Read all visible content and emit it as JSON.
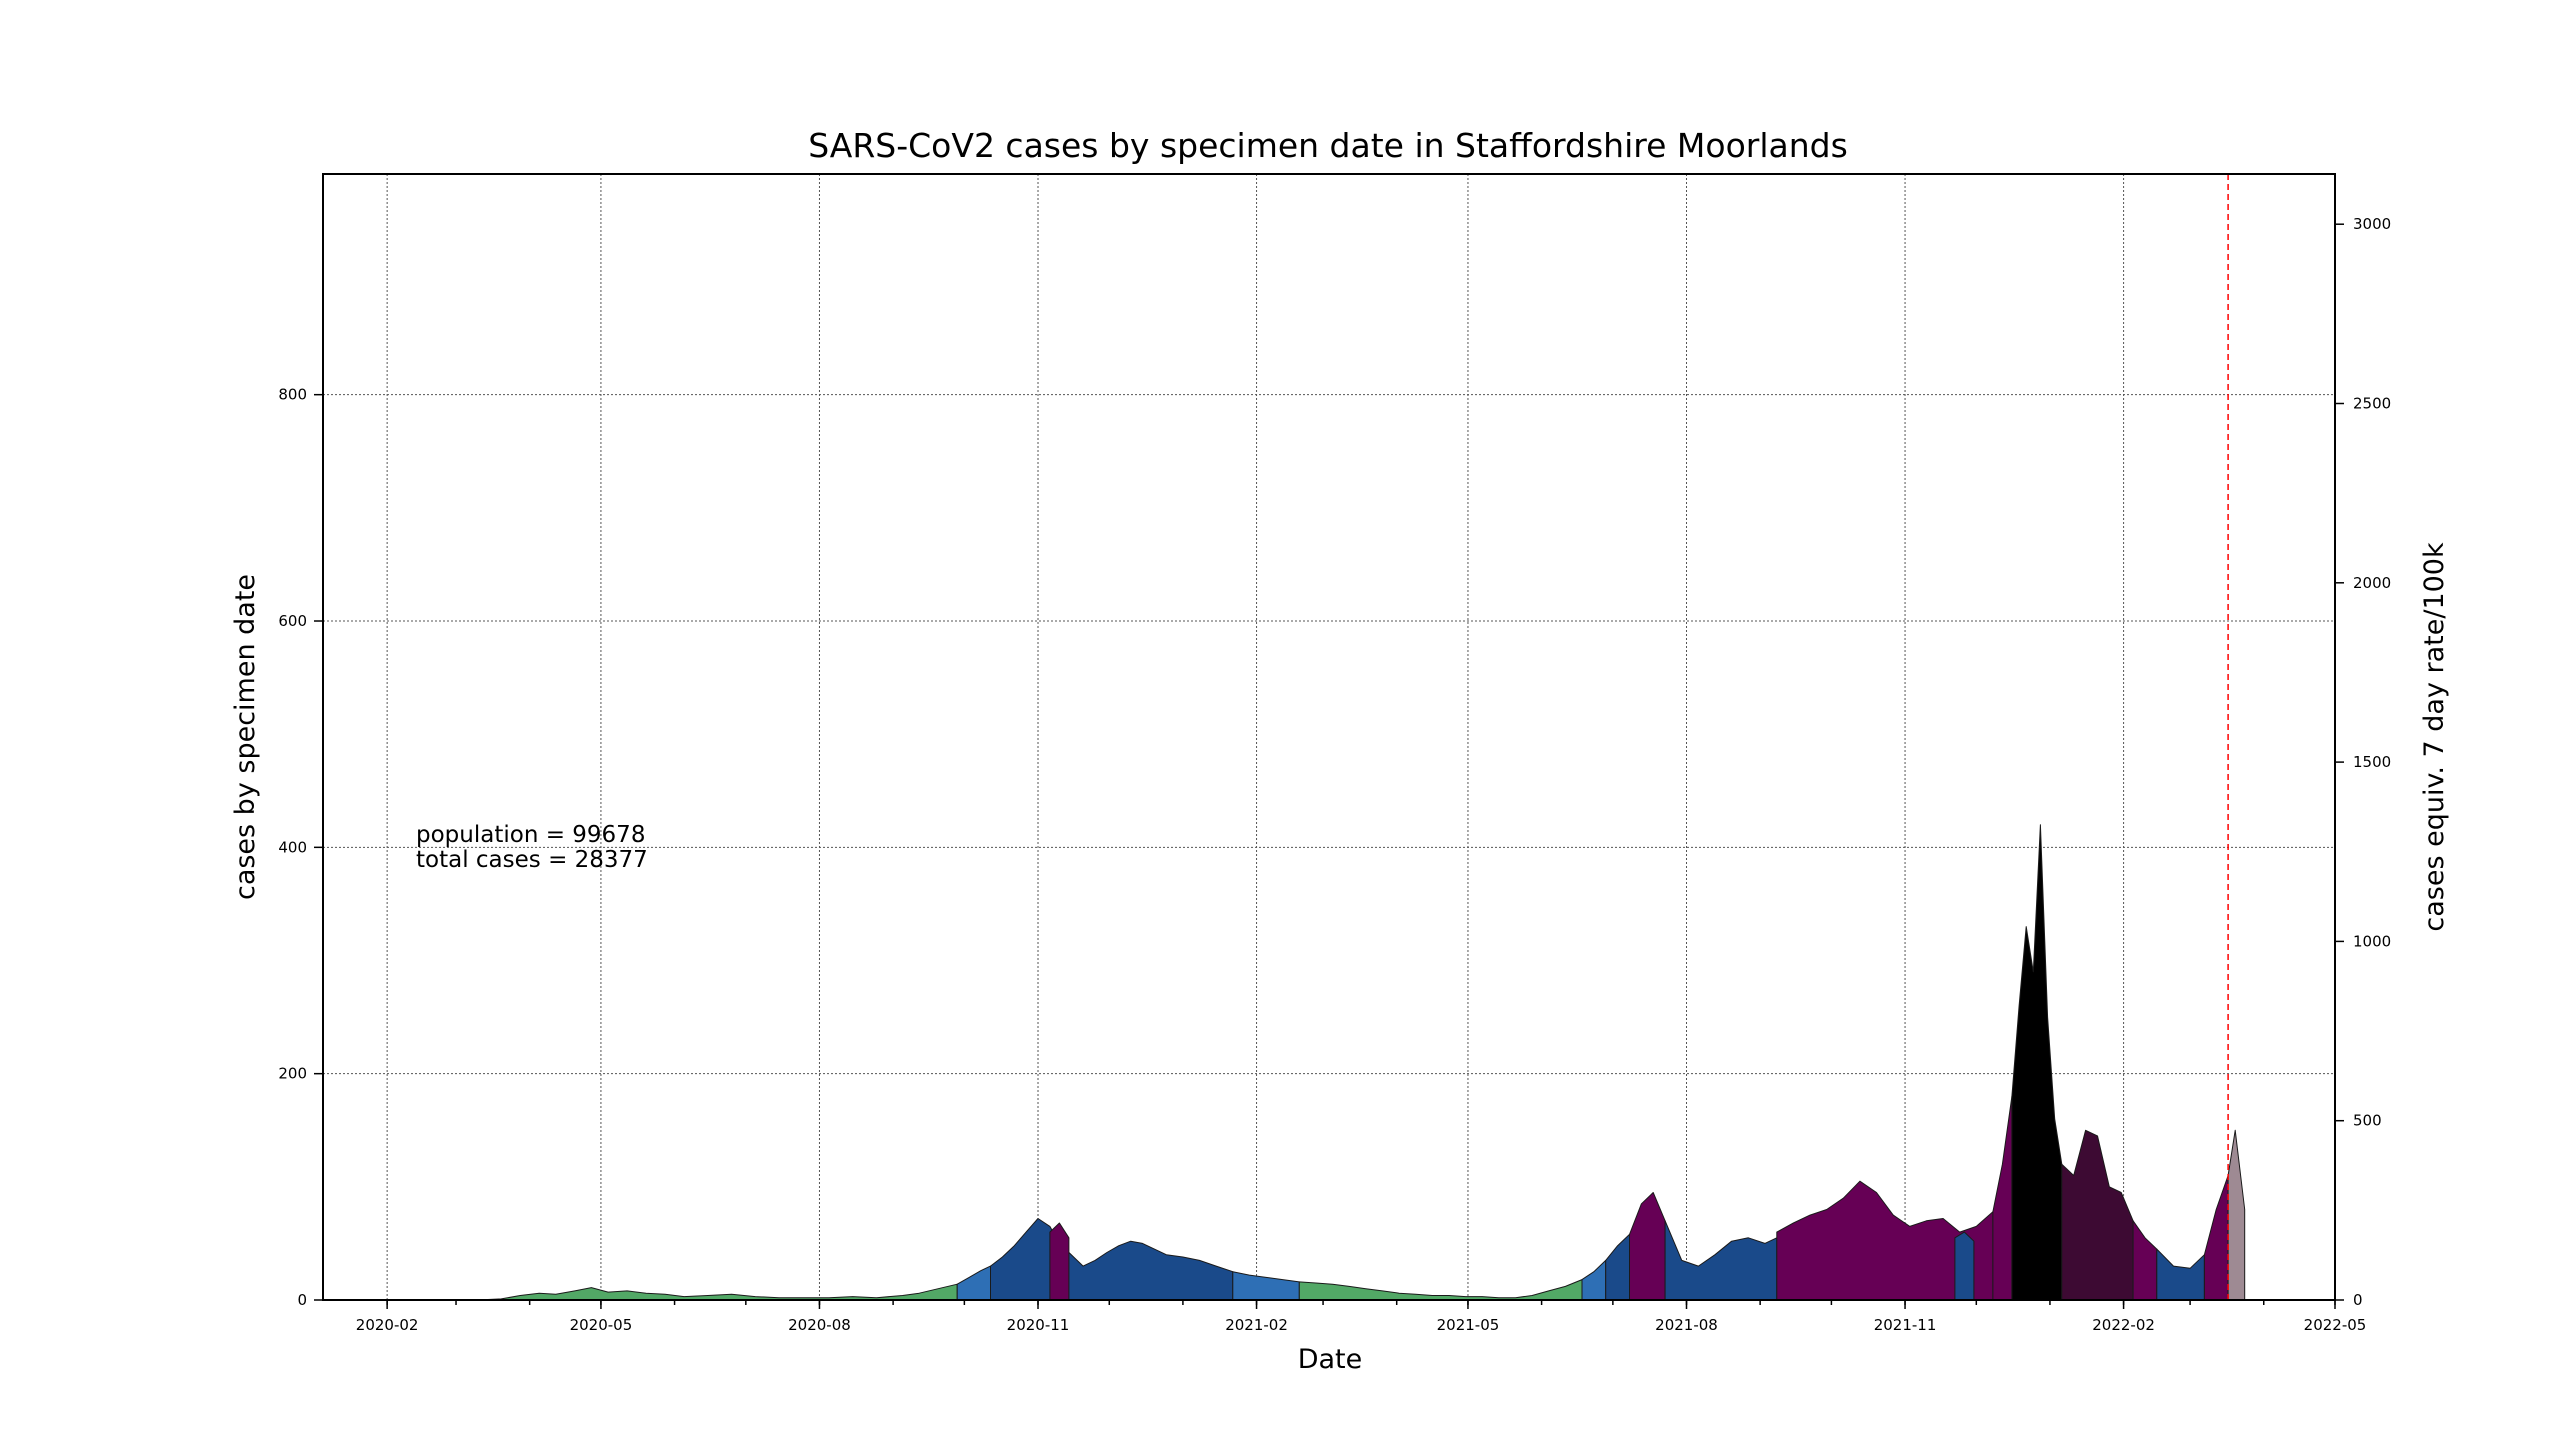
{
  "chart_data": {
    "type": "area",
    "title": "SARS-CoV2 cases by specimen date in Staffordshire Moorlands",
    "xlabel": "Date",
    "ylabel": "cases by specimen date",
    "y2label": "cases equiv. 7 day rate/100k",
    "annotations": [
      "population = 99678",
      "total cases = 28377"
    ],
    "xlim": [
      "2020-01-05",
      "2022-05-01"
    ],
    "ylim": [
      0,
      995
    ],
    "y2lim": [
      0,
      3140
    ],
    "x_ticks": [
      "2020-02-01",
      "2020-05-01",
      "2020-08-01",
      "2020-11-01",
      "2021-02-01",
      "2021-05-01",
      "2021-08-01",
      "2021-11-01",
      "2022-02-01",
      "2022-05-01"
    ],
    "x_tick_labels": [
      "2020-02",
      "2020-05",
      "2020-08",
      "2020-11",
      "2021-02",
      "2021-05",
      "2021-08",
      "2021-11",
      "2022-02",
      "2022-05"
    ],
    "y_ticks": [
      0,
      200,
      400,
      600,
      800
    ],
    "y_tick_labels": [
      "0",
      "200",
      "400",
      "600",
      "800"
    ],
    "y2_ticks": [
      0,
      500,
      1000,
      1500,
      2000,
      2500,
      3000
    ],
    "y2_tick_labels": [
      "0",
      "500",
      "1000",
      "1500",
      "2000",
      "2500",
      "3000"
    ],
    "grid": true,
    "reference_line": {
      "date": "2022-03-17",
      "color": "#ff0000",
      "style": "dashed"
    },
    "series": [
      {
        "color": "#52a866",
        "x": [
          "2020-03-10",
          "2020-03-20",
          "2020-03-28",
          "2020-04-05",
          "2020-04-12",
          "2020-04-20",
          "2020-04-27",
          "2020-05-04",
          "2020-05-12",
          "2020-05-20",
          "2020-05-28",
          "2020-06-05",
          "2020-06-15",
          "2020-06-25",
          "2020-07-05",
          "2020-07-15",
          "2020-07-25",
          "2020-08-05",
          "2020-08-15",
          "2020-08-25",
          "2020-09-05",
          "2020-09-12",
          "2020-09-20",
          "2020-09-28"
        ],
        "y": [
          0,
          1,
          4,
          6,
          5,
          8,
          11,
          7,
          8,
          6,
          5,
          3,
          4,
          5,
          3,
          2,
          2,
          2,
          3,
          2,
          4,
          6,
          10,
          14
        ]
      },
      {
        "color": "#2e6fb5",
        "x": [
          "2020-09-28",
          "2020-10-03",
          "2020-10-08",
          "2020-10-12"
        ],
        "y": [
          14,
          20,
          26,
          30
        ]
      },
      {
        "color": "#1a4a8a",
        "x": [
          "2020-10-12",
          "2020-10-17",
          "2020-10-22",
          "2020-10-27",
          "2020-11-01",
          "2020-11-06",
          "2020-11-10",
          "2020-11-15",
          "2020-11-20",
          "2020-11-25",
          "2020-11-30",
          "2020-12-05",
          "2020-12-10",
          "2020-12-15",
          "2020-12-20",
          "2020-12-25",
          "2021-01-01",
          "2021-01-08",
          "2021-01-15",
          "2021-01-22"
        ],
        "y": [
          30,
          38,
          48,
          60,
          72,
          65,
          50,
          40,
          30,
          35,
          42,
          48,
          52,
          50,
          45,
          40,
          38,
          35,
          30,
          25
        ]
      },
      {
        "color": "#660055",
        "x": [
          "2020-11-06",
          "2020-11-10",
          "2020-11-14"
        ],
        "y": [
          60,
          68,
          55
        ]
      },
      {
        "color": "#2e6fb5",
        "x": [
          "2021-01-22",
          "2021-01-29",
          "2021-02-05",
          "2021-02-12",
          "2021-02-19"
        ],
        "y": [
          25,
          22,
          20,
          18,
          16
        ]
      },
      {
        "color": "#52a866",
        "x": [
          "2021-02-19",
          "2021-02-26",
          "2021-03-05",
          "2021-03-12",
          "2021-03-19",
          "2021-03-26",
          "2021-04-02",
          "2021-04-09",
          "2021-04-16",
          "2021-04-23",
          "2021-04-30",
          "2021-05-07",
          "2021-05-14",
          "2021-05-21",
          "2021-05-28",
          "2021-06-04",
          "2021-06-11",
          "2021-06-18"
        ],
        "y": [
          16,
          15,
          14,
          12,
          10,
          8,
          6,
          5,
          4,
          4,
          3,
          3,
          2,
          2,
          4,
          8,
          12,
          18
        ]
      },
      {
        "color": "#2e6fb5",
        "x": [
          "2021-06-18",
          "2021-06-23",
          "2021-06-28"
        ],
        "y": [
          18,
          25,
          35
        ]
      },
      {
        "color": "#1a4a8a",
        "x": [
          "2021-06-28",
          "2021-07-03",
          "2021-07-08"
        ],
        "y": [
          35,
          48,
          58
        ]
      },
      {
        "color": "#660055",
        "x": [
          "2021-07-08",
          "2021-07-13",
          "2021-07-18",
          "2021-07-23"
        ],
        "y": [
          58,
          85,
          95,
          70
        ]
      },
      {
        "color": "#1a4a8a",
        "x": [
          "2021-07-23",
          "2021-07-30",
          "2021-08-06",
          "2021-08-13",
          "2021-08-20",
          "2021-08-27",
          "2021-09-03",
          "2021-09-08"
        ],
        "y": [
          70,
          35,
          30,
          40,
          52,
          55,
          50,
          55
        ]
      },
      {
        "color": "#660055",
        "x": [
          "2021-09-08",
          "2021-09-15",
          "2021-09-22",
          "2021-09-29",
          "2021-10-06",
          "2021-10-13",
          "2021-10-20",
          "2021-10-27",
          "2021-11-03",
          "2021-11-10",
          "2021-11-17",
          "2021-11-24",
          "2021-12-01",
          "2021-12-08"
        ],
        "y": [
          60,
          68,
          75,
          80,
          90,
          105,
          95,
          75,
          65,
          70,
          72,
          60,
          65,
          78
        ]
      },
      {
        "color": "#1a4a8a",
        "x": [
          "2021-11-22",
          "2021-11-26",
          "2021-11-30"
        ],
        "y": [
          55,
          60,
          52
        ]
      },
      {
        "color": "#660055",
        "x": [
          "2021-12-08",
          "2021-12-12",
          "2021-12-16"
        ],
        "y": [
          78,
          120,
          180
        ]
      },
      {
        "color": "#000000",
        "x": [
          "2021-12-16",
          "2021-12-19",
          "2021-12-22",
          "2021-12-25",
          "2021-12-28",
          "2021-12-31",
          "2022-01-03",
          "2022-01-06"
        ],
        "y": [
          180,
          260,
          330,
          290,
          420,
          250,
          160,
          120
        ]
      },
      {
        "color": "#3d0a33",
        "x": [
          "2022-01-06",
          "2022-01-11",
          "2022-01-16",
          "2022-01-21",
          "2022-01-26",
          "2022-01-31",
          "2022-02-05"
        ],
        "y": [
          120,
          110,
          150,
          145,
          100,
          95,
          70
        ]
      },
      {
        "color": "#660055",
        "x": [
          "2022-02-05",
          "2022-02-10",
          "2022-02-15"
        ],
        "y": [
          70,
          55,
          45
        ]
      },
      {
        "color": "#1a4a8a",
        "x": [
          "2022-02-15",
          "2022-02-22",
          "2022-03-01",
          "2022-03-07"
        ],
        "y": [
          45,
          30,
          28,
          40
        ]
      },
      {
        "color": "#660055",
        "x": [
          "2022-03-07",
          "2022-03-12",
          "2022-03-17"
        ],
        "y": [
          40,
          80,
          110
        ]
      },
      {
        "color": "#9e8a93",
        "x": [
          "2022-03-17",
          "2022-03-20",
          "2022-03-24"
        ],
        "y": [
          110,
          150,
          80
        ]
      }
    ]
  }
}
